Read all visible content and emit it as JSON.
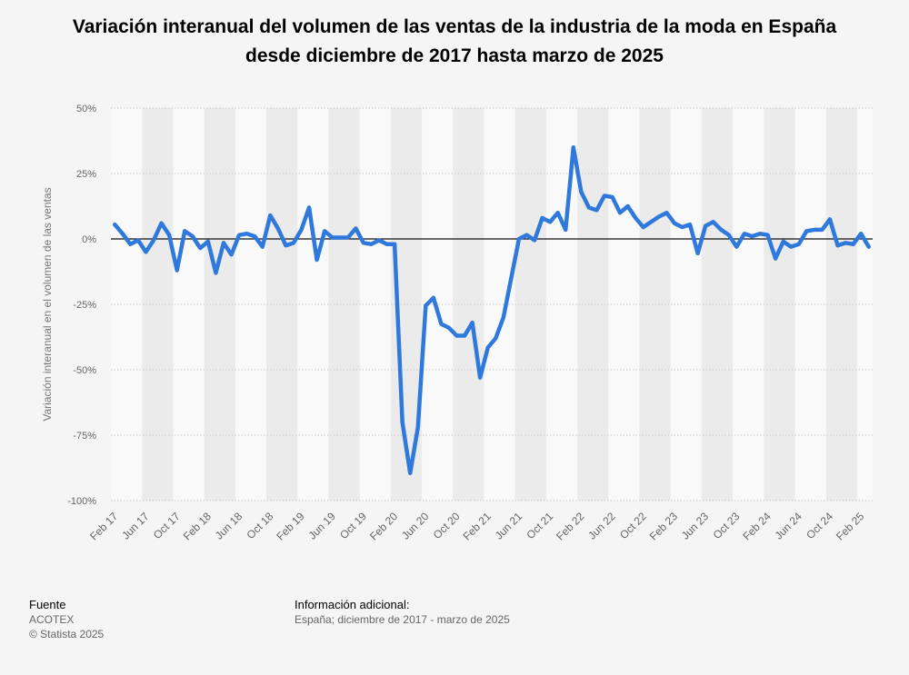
{
  "title_lines": [
    "Variación interanual del volumen de las ventas de la industria de la moda en España",
    "desde diciembre de 2017 hasta marzo de 2025"
  ],
  "footer": {
    "source_heading": "Fuente",
    "source_name": "ACOTEX",
    "copyright": "© Statista 2025",
    "info_heading": "Información adicional:",
    "info_text": "España; diciembre de 2017 - marzo de 2025"
  },
  "colors": {
    "line": "#2f78dc",
    "band": "#ebebeb",
    "plot_bg": "#f9f9f9",
    "grid": "#c8c8c8",
    "zero": "#111111",
    "tick_text": "#666666"
  },
  "chart_data": {
    "type": "line",
    "title": "Variación interanual del volumen de las ventas de la industria de la moda en España desde diciembre de 2017 hasta marzo de 2025",
    "ylabel": "Variación interanual en el volumen de las ventas",
    "xlabel": "",
    "ylim": [
      -100,
      50
    ],
    "grid": true,
    "y_ticks": [
      50,
      25,
      0,
      -25,
      -50,
      -75,
      -100
    ],
    "y_tick_labels": [
      "50%",
      "25%",
      "0%",
      "-25%",
      "-50%",
      "-75%",
      "-100%"
    ],
    "x_tick_labels": [
      "Feb 17",
      "Jun 17",
      "Oct 17",
      "Feb 18",
      "Jun 18",
      "Oct 18",
      "Feb 19",
      "Jun 19",
      "Oct 19",
      "Feb 20",
      "Jun 20",
      "Oct 20",
      "Feb 21",
      "Jun 21",
      "Oct 21",
      "Feb 22",
      "Jun 22",
      "Oct 22",
      "Feb 23",
      "Jun 23",
      "Oct 23",
      "Feb 24",
      "Jun 24",
      "Oct 24",
      "Feb 25"
    ],
    "series": [
      {
        "values": [
          5.5,
          2,
          -2,
          -0.5,
          -5,
          -0.5,
          6,
          1.5,
          -12,
          3,
          1,
          -3.5,
          -1,
          -13,
          -1.5,
          -6,
          1.5,
          2,
          1,
          -3,
          9,
          4,
          -2.5,
          -1.5,
          3.5,
          12,
          -8,
          3,
          0.5,
          0.5,
          0.5,
          4,
          -1.5,
          -2,
          -0.5,
          -2,
          -2,
          -70,
          -89.5,
          -72,
          -25.5,
          -22.5,
          -32.5,
          -34,
          -37,
          -37,
          -32,
          -53,
          -41.5,
          -38,
          -30,
          -15,
          0,
          1.5,
          -0.5,
          8,
          6.5,
          10,
          3.5,
          35,
          18,
          12,
          11,
          16.5,
          16,
          10,
          12.5,
          8,
          4.5,
          6.5,
          8.5,
          10,
          6,
          4.5,
          5.5,
          -5.5,
          5,
          6.5,
          3.5,
          1.5,
          -3,
          2,
          1,
          2,
          1.5,
          -7.5,
          -1,
          -3,
          -2,
          3,
          3.5,
          3.5,
          7.5,
          -2.5,
          -1.5,
          -2,
          2,
          -3
        ]
      }
    ]
  }
}
